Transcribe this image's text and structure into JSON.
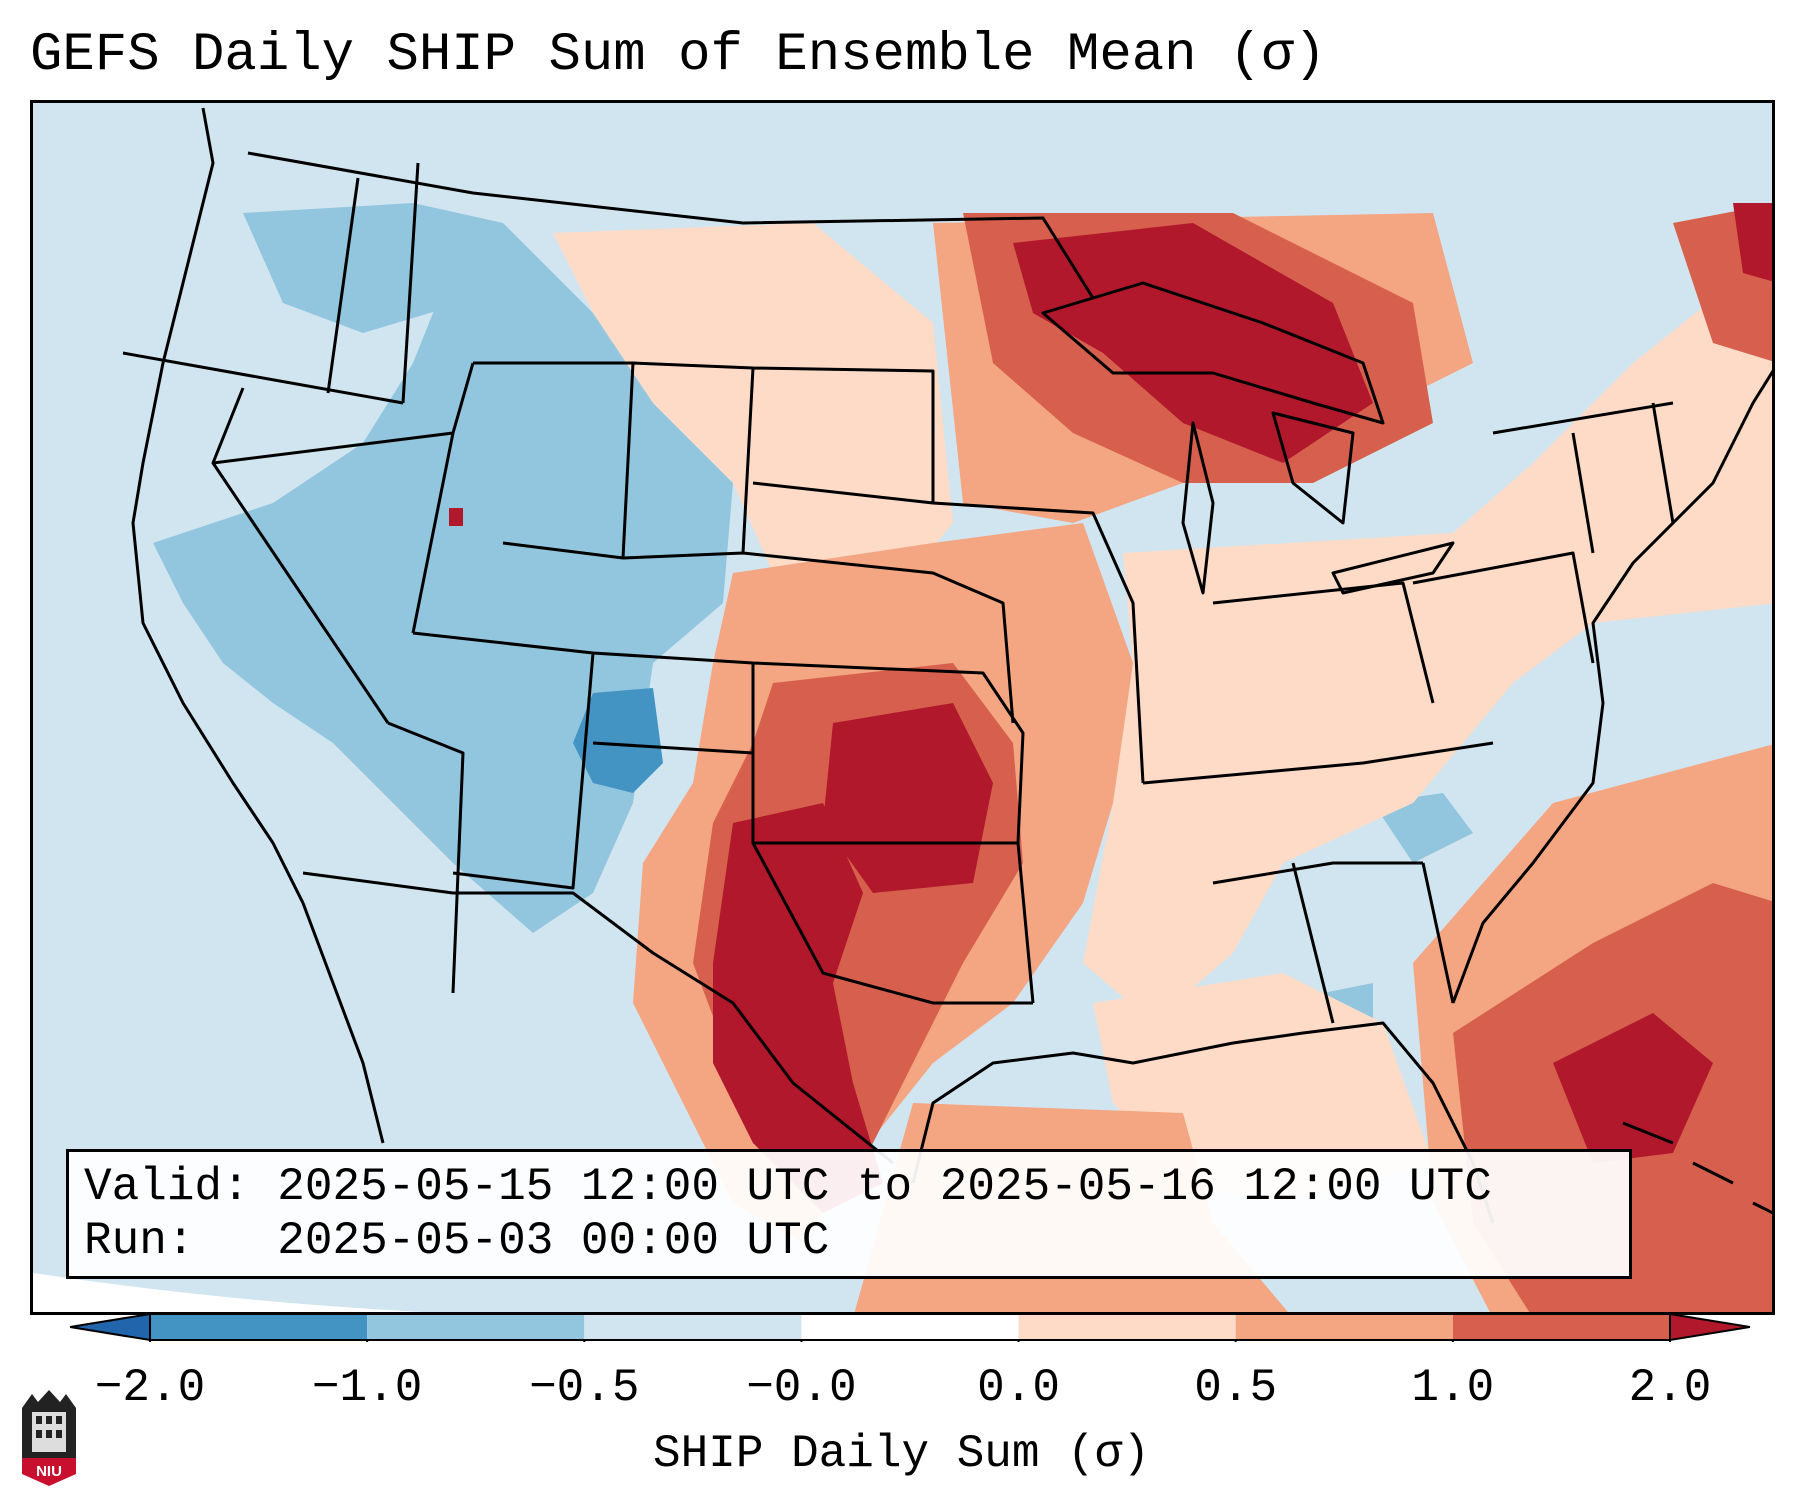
{
  "title": "GEFS Daily SHIP Sum of Ensemble Mean (σ)",
  "info": {
    "valid_label": "Valid:",
    "valid_value": "2025-05-15 12:00 UTC to 2025-05-16 12:00 UTC",
    "run_label": "Run:",
    "run_value": "2025-05-03 00:00 UTC"
  },
  "colorbar": {
    "label": "SHIP Daily Sum (σ)",
    "ticks": [
      "−2.0",
      "−1.0",
      "−0.5",
      "−0.0",
      "0.0",
      "0.5",
      "1.0",
      "2.0"
    ],
    "colors": [
      "#4393c3",
      "#92c5de",
      "#d1e5f0",
      "#ffffff",
      "#fddbc7",
      "#f4a582",
      "#d6604d",
      "#b2182b"
    ],
    "extend_low_color": "#2166ac",
    "extend_high_color": "#b2182b"
  },
  "logo": {
    "text": "NIU",
    "icon": "niu-logo-icon"
  },
  "map_colors": {
    "ocean_background": "#d1e5f0",
    "outside_projection": "#ffffff",
    "boundaries": "#000000"
  }
}
